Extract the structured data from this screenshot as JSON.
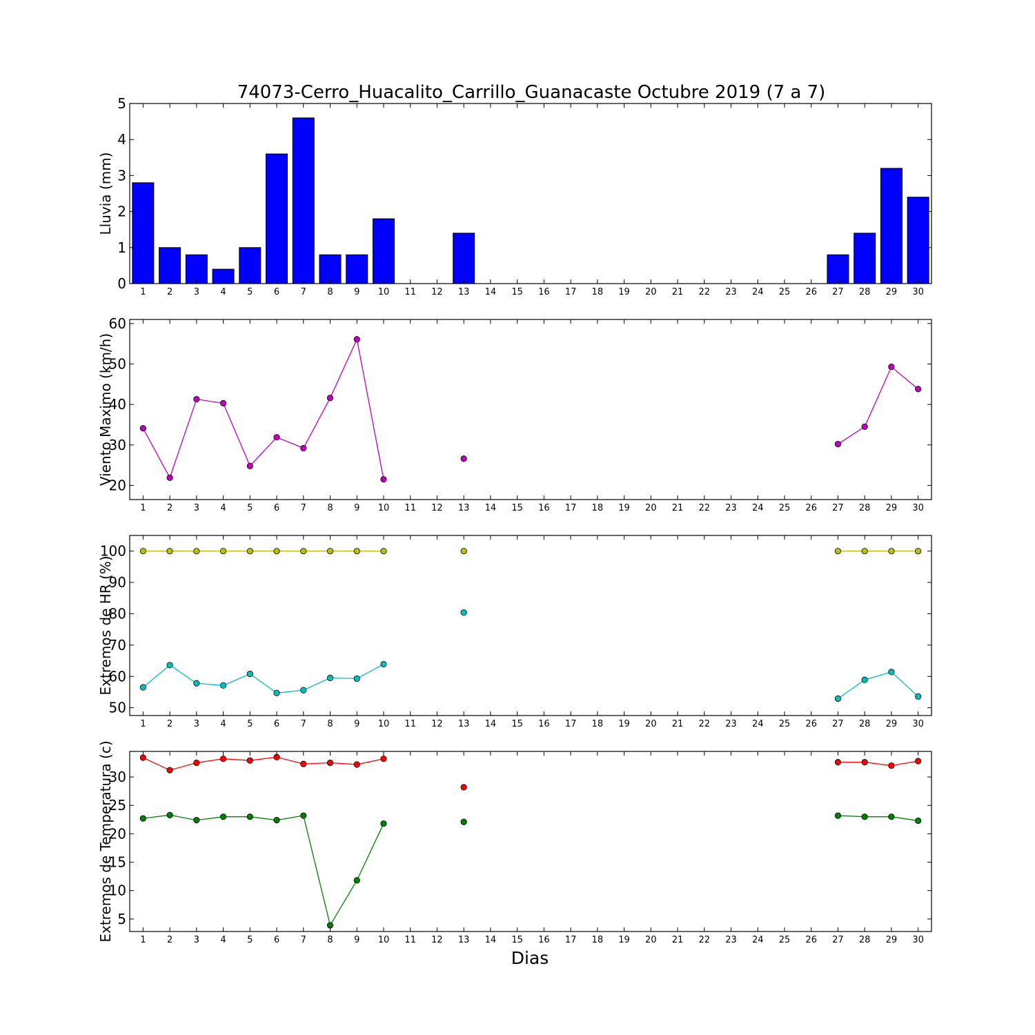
{
  "chart_data": {
    "title": "74073-Cerro_Huacalito_Carrillo_Guanacaste Octubre 2019  (7 a 7)",
    "xlabel": "Dias",
    "days": [
      1,
      2,
      3,
      4,
      5,
      6,
      7,
      8,
      9,
      10,
      11,
      12,
      13,
      14,
      15,
      16,
      17,
      18,
      19,
      20,
      21,
      22,
      23,
      24,
      25,
      26,
      27,
      28,
      29,
      30
    ],
    "subplots": [
      {
        "type": "bar",
        "ylabel": "Lluvia (mm)",
        "ylim": [
          0,
          5
        ],
        "yticks": [
          0,
          1,
          2,
          3,
          4,
          5
        ],
        "series": [
          {
            "color": "#0000ff",
            "values": [
              2.8,
              1.0,
              0.8,
              0.4,
              1.0,
              3.6,
              4.6,
              0.8,
              0.8,
              1.8,
              0,
              0,
              1.4,
              0,
              0,
              0,
              0,
              0,
              0,
              0,
              0,
              0,
              0,
              0,
              0,
              0,
              0.8,
              1.4,
              3.2,
              2.4
            ]
          }
        ]
      },
      {
        "type": "line",
        "ylabel": "Viento Maximo (km/h)",
        "ylim": [
          16.5,
          61
        ],
        "yticks": [
          20,
          30,
          40,
          50,
          60
        ],
        "series": [
          {
            "color": "#bf00bf",
            "values": [
              34.1,
              21.9,
              41.3,
              40.3,
              24.8,
              31.9,
              29.2,
              41.6,
              56.1,
              21.5,
              null,
              null,
              26.6,
              null,
              null,
              null,
              null,
              null,
              null,
              null,
              null,
              null,
              null,
              null,
              null,
              null,
              30.2,
              34.5,
              49.3,
              43.8
            ]
          }
        ]
      },
      {
        "type": "line",
        "ylabel": "Extremos de HR (%)",
        "ylim": [
          47.5,
          105
        ],
        "yticks": [
          50,
          60,
          70,
          80,
          90,
          100
        ],
        "series": [
          {
            "color": "#bfbf00",
            "values": [
              100,
              100,
              100,
              100,
              100,
              100,
              100,
              100,
              100,
              100,
              null,
              null,
              100,
              null,
              null,
              null,
              null,
              null,
              null,
              null,
              null,
              null,
              null,
              null,
              null,
              null,
              100,
              100,
              100,
              100
            ]
          },
          {
            "color": "#00bfbf",
            "values": [
              56.5,
              63.6,
              57.8,
              57.1,
              60.8,
              54.7,
              55.6,
              59.5,
              59.3,
              63.9,
              null,
              null,
              80.4,
              null,
              null,
              null,
              null,
              null,
              null,
              null,
              null,
              null,
              null,
              null,
              null,
              null,
              52.9,
              58.9,
              61.4,
              53.6
            ]
          }
        ]
      },
      {
        "type": "line",
        "ylabel": "Extremos de Temperatura (c)",
        "ylim": [
          2.8,
          34.5
        ],
        "yticks": [
          5,
          10,
          15,
          20,
          25,
          30
        ],
        "series": [
          {
            "color": "#ff0000",
            "values": [
              33.4,
              31.2,
              32.5,
              33.2,
              32.9,
              33.5,
              32.3,
              32.5,
              32.2,
              33.2,
              null,
              null,
              28.2,
              null,
              null,
              null,
              null,
              null,
              null,
              null,
              null,
              null,
              null,
              null,
              null,
              null,
              32.6,
              32.6,
              32.0,
              32.8
            ]
          },
          {
            "color": "#008000",
            "values": [
              22.7,
              23.3,
              22.4,
              23.0,
              23.0,
              22.4,
              23.2,
              3.9,
              11.8,
              21.8,
              null,
              null,
              22.1,
              null,
              null,
              null,
              null,
              null,
              null,
              null,
              null,
              null,
              null,
              null,
              null,
              null,
              23.2,
              23.0,
              23.0,
              22.3
            ]
          }
        ]
      }
    ]
  }
}
